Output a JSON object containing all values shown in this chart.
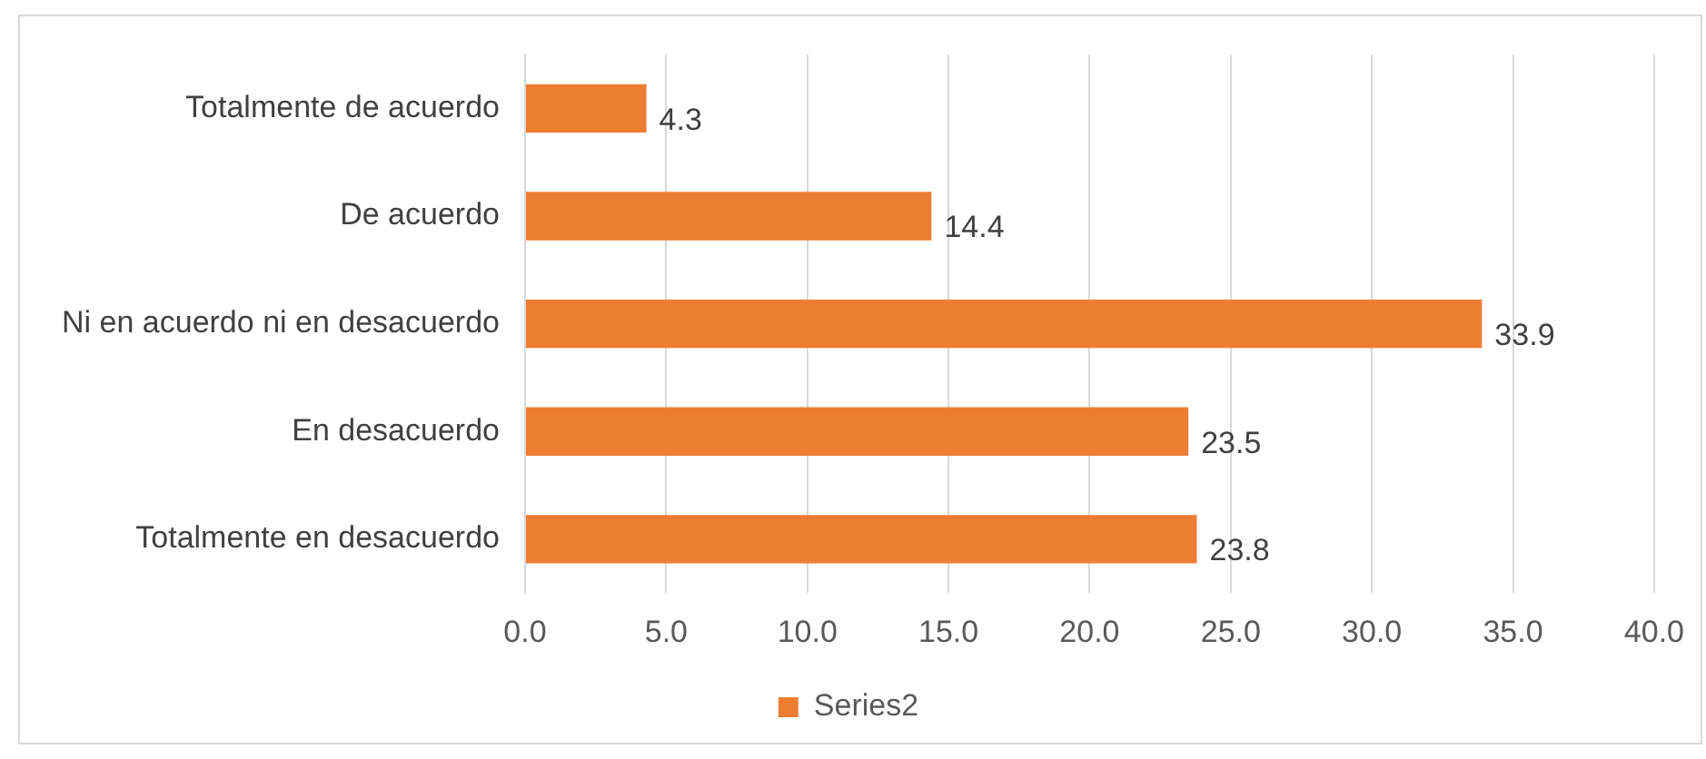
{
  "chart_data": {
    "type": "bar",
    "orientation": "horizontal",
    "categories": [
      "Totalmente de acuerdo",
      "De acuerdo",
      "Ni en acuerdo ni en desacuerdo",
      "En desacuerdo",
      "Totalmente en desacuerdo"
    ],
    "series": [
      {
        "name": "Series2",
        "color": "#ed7d31",
        "values": [
          4.3,
          14.4,
          33.9,
          23.5,
          23.8
        ]
      }
    ],
    "xlim": [
      0,
      40
    ],
    "xticks": [
      {
        "value": 0,
        "label": "0.0"
      },
      {
        "value": 5,
        "label": "5.0"
      },
      {
        "value": 10,
        "label": "10.0"
      },
      {
        "value": 15,
        "label": "15.0"
      },
      {
        "value": 20,
        "label": "20.0"
      },
      {
        "value": 25,
        "label": "25.0"
      },
      {
        "value": 30,
        "label": "30.0"
      },
      {
        "value": 35,
        "label": "35.0"
      },
      {
        "value": 40,
        "label": "40.0"
      }
    ],
    "grid": "x",
    "legend": "bottom",
    "data_labels": true
  }
}
